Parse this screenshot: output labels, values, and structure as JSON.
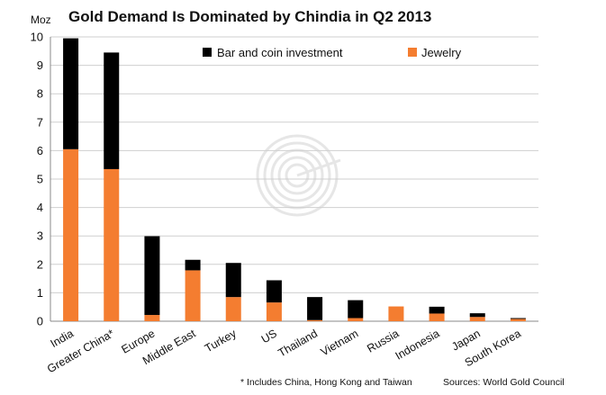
{
  "chart_data": {
    "type": "bar",
    "stacked": true,
    "title": "Gold Demand Is Dominated by Chindia in Q2 2013",
    "ylabel": "Moz",
    "ylim": [
      0,
      10
    ],
    "yticks": [
      "0",
      "1",
      "2",
      "3",
      "4",
      "5",
      "6",
      "7",
      "8",
      "9",
      "10"
    ],
    "grid": true,
    "legend_position": "top",
    "categories": [
      "India",
      "Greater China*",
      "Europe",
      "Middle East",
      "Turkey",
      "US",
      "Thailand",
      "Vietnam",
      "Russia",
      "Indonesia",
      "Japan",
      "South Korea"
    ],
    "series": [
      {
        "name": "Jewelry",
        "color": "#F47D30",
        "values": [
          6.05,
          5.35,
          0.22,
          1.79,
          0.85,
          0.66,
          0.04,
          0.11,
          0.52,
          0.27,
          0.15,
          0.08
        ]
      },
      {
        "name": "Bar and coin investment",
        "color": "#000000",
        "values": [
          3.9,
          4.1,
          2.77,
          0.37,
          1.2,
          0.78,
          0.81,
          0.63,
          0.0,
          0.24,
          0.13,
          0.03
        ]
      }
    ],
    "legend_order": [
      "Bar and coin investment",
      "Jewelry"
    ]
  },
  "footnote": "* Includes China, Hong Kong and Taiwan",
  "source": "Sources: World Gold Council"
}
